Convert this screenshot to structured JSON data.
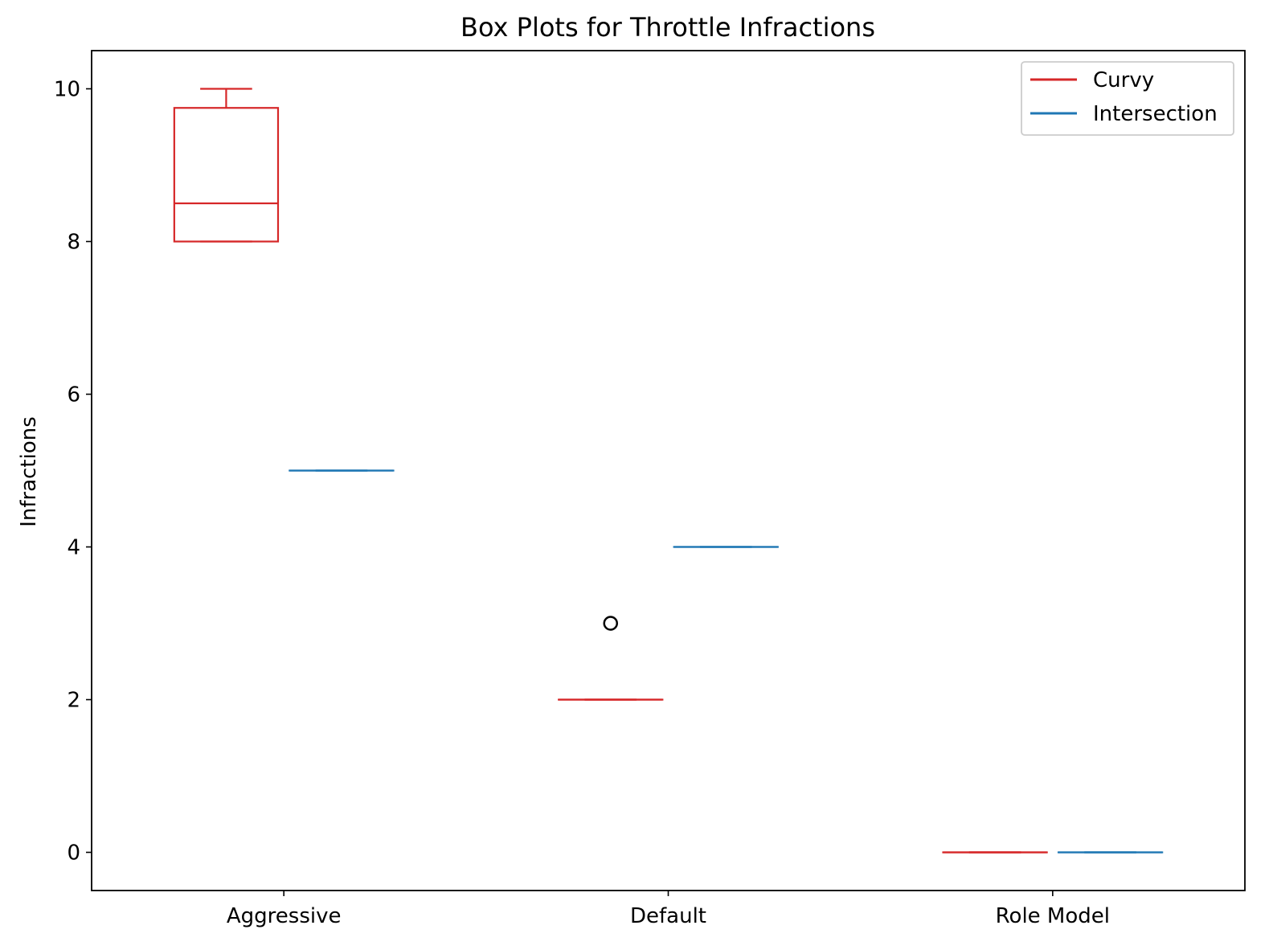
{
  "chart_data": {
    "type": "box",
    "title": "Box Plots for Throttle Infractions",
    "xlabel": "",
    "ylabel": "Infractions",
    "categories": [
      "Aggressive",
      "Default",
      "Role Model"
    ],
    "ylim": [
      -0.5,
      10.5
    ],
    "yticks": [
      0,
      2,
      4,
      6,
      8,
      10
    ],
    "grid": false,
    "legend_position": "top-right",
    "series": [
      {
        "name": "Curvy",
        "color": "#d62728",
        "boxes": [
          {
            "category": "Aggressive",
            "whisker_low": 8,
            "q1": 8,
            "median": 8.5,
            "q3": 9.75,
            "whisker_high": 10,
            "outliers": []
          },
          {
            "category": "Default",
            "whisker_low": 2,
            "q1": 2,
            "median": 2,
            "q3": 2,
            "whisker_high": 2,
            "outliers": [
              3
            ]
          },
          {
            "category": "Role Model",
            "whisker_low": 0,
            "q1": 0,
            "median": 0,
            "q3": 0,
            "whisker_high": 0,
            "outliers": []
          }
        ]
      },
      {
        "name": "Intersection",
        "color": "#1f77b4",
        "boxes": [
          {
            "category": "Aggressive",
            "whisker_low": 5,
            "q1": 5,
            "median": 5,
            "q3": 5,
            "whisker_high": 5,
            "outliers": []
          },
          {
            "category": "Default",
            "whisker_low": 4,
            "q1": 4,
            "median": 4,
            "q3": 4,
            "whisker_high": 4,
            "outliers": []
          },
          {
            "category": "Role Model",
            "whisker_low": 0,
            "q1": 0,
            "median": 0,
            "q3": 0,
            "whisker_high": 0,
            "outliers": []
          }
        ]
      }
    ]
  }
}
